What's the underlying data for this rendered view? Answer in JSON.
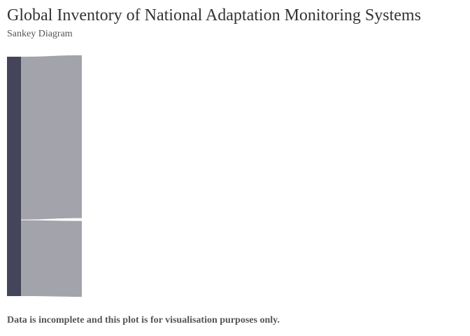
{
  "header": {
    "title": "Global Inventory of National Adaptation Monitoring Systems",
    "subtitle": "Sankey Diagram"
  },
  "footer": {
    "caption": "Data is incomplete and this plot is for visualisation purposes only."
  },
  "colors": {
    "node": "#44445a",
    "link": "#a3a3ab",
    "title": "#333333",
    "subtitle": "#555555"
  },
  "chart_data": {
    "type": "sankey",
    "nodes": [
      {
        "id": "source",
        "label": ""
      }
    ],
    "links": [
      {
        "source": "source",
        "target": "",
        "value": 234
      },
      {
        "source": "source",
        "target": "",
        "value": 109
      }
    ]
  }
}
